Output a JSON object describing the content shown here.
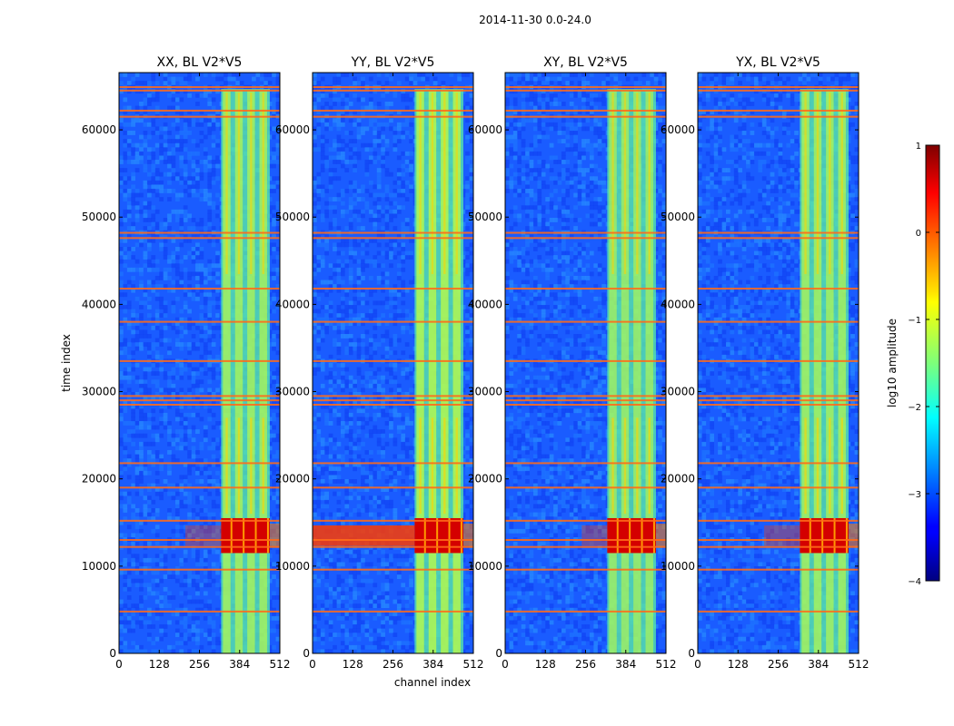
{
  "chart_data": {
    "type": "heatmap",
    "suptitle": "2014-11-30 0.0-24.0",
    "xlabel": "channel index",
    "ylabel": "time index",
    "xlim": [
      0,
      512
    ],
    "ylim": [
      0,
      66560
    ],
    "x_ticks": [
      0,
      128,
      256,
      384,
      512
    ],
    "y_ticks": [
      0,
      10000,
      20000,
      30000,
      40000,
      50000,
      60000
    ],
    "panels": [
      {
        "title": "XX, BL V2*V5",
        "bright_intensity": 0.6,
        "flare_extent": 0.35
      },
      {
        "title": "YY, BL V2*V5",
        "bright_intensity": 0.7,
        "flare_extent": 1.0
      },
      {
        "title": "XY, BL V2*V5",
        "bright_intensity": 0.55,
        "flare_extent": 0.25
      },
      {
        "title": "YX, BL V2*V5",
        "bright_intensity": 0.6,
        "flare_extent": 0.35
      }
    ],
    "bright_channel_range": [
      325,
      480
    ],
    "flare_time_range": [
      11500,
      15500
    ],
    "rfi_time_bands": [
      4800,
      9600,
      12200,
      13000,
      15200,
      19000,
      21800,
      28500,
      29000,
      29500,
      33500,
      38000,
      41800,
      47600,
      48200,
      61500,
      62200,
      64500,
      64900
    ],
    "colorbar": {
      "label": "log10 amplitude",
      "vmin": -4,
      "vmax": 1,
      "ticks": [
        1,
        0,
        -1,
        -2,
        -3,
        -4
      ],
      "tick_labels": [
        "1",
        "0",
        "−1",
        "−2",
        "−3",
        "−4"
      ]
    }
  }
}
